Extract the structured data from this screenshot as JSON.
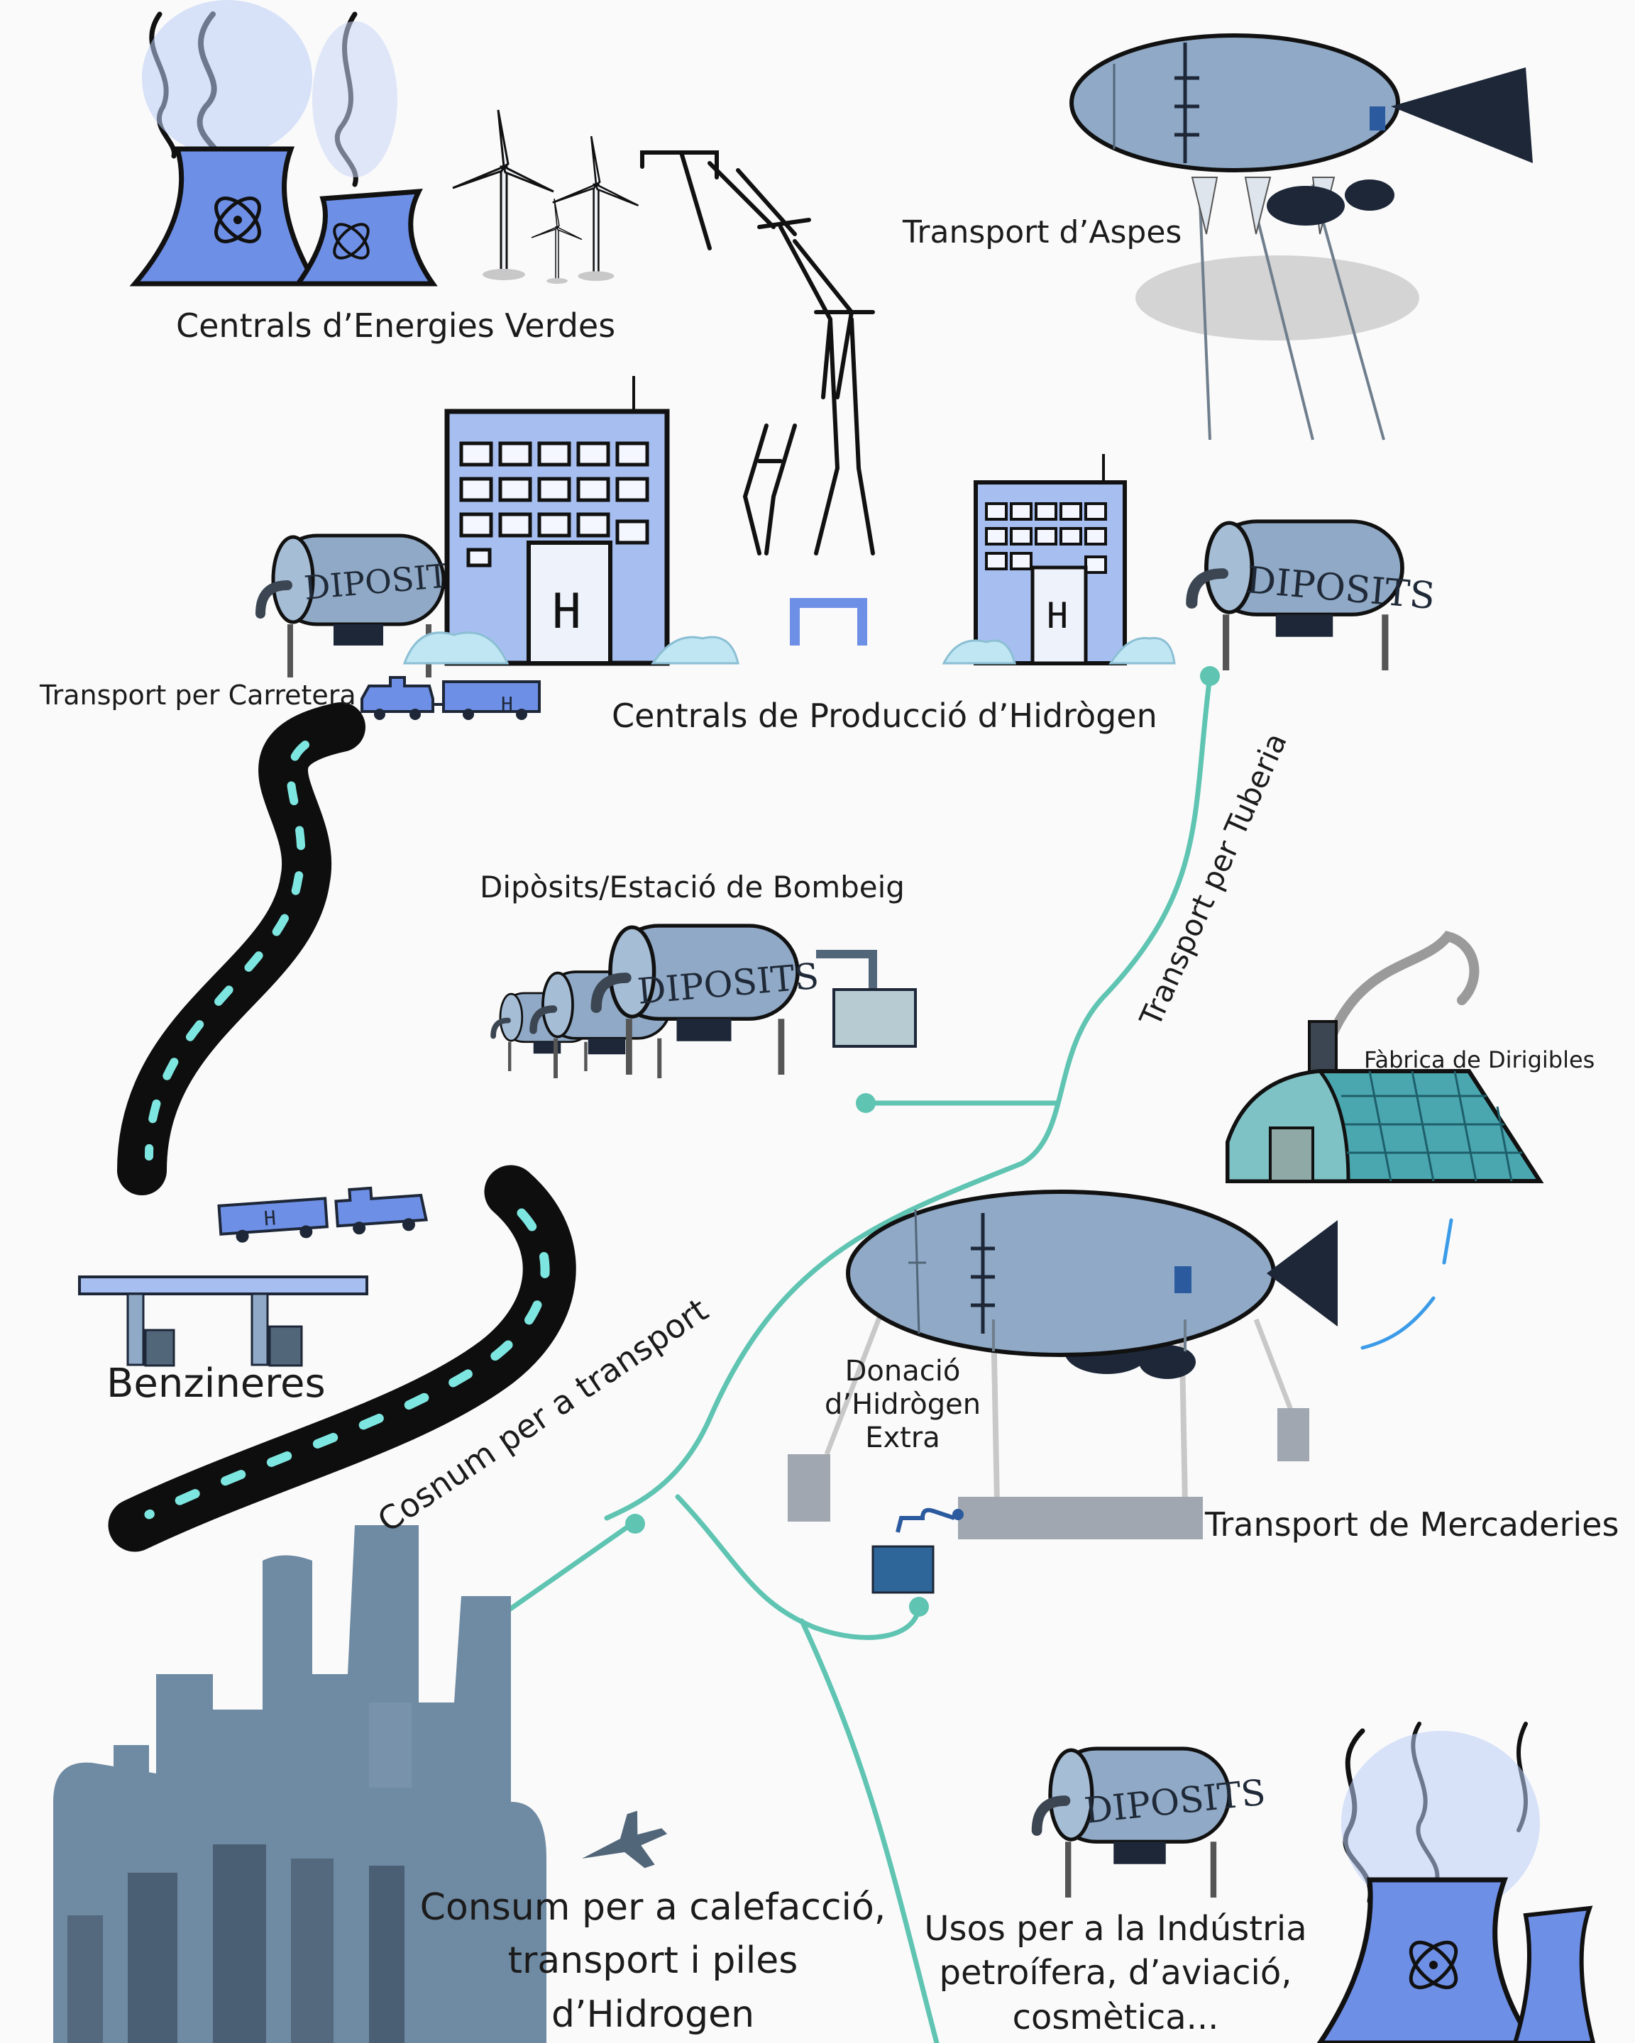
{
  "colors": {
    "background": "#fafafa",
    "light_blue": "#a7bff0",
    "blue": "#6e8fe6",
    "steel": "#8fa9c6",
    "dark_navy": "#1d2738",
    "pipeline_teal": "#5fc4b2",
    "road_black": "#0e0e0e",
    "road_dash": "#7ee6e0",
    "city_slate": "#6f8aa3",
    "factory_teal": "#4aa7b0"
  },
  "labels": {
    "green_energy_plants": "Centrals d’Energies Verdes",
    "airship_transport": "Transport d’Aspes",
    "road_transport": "Transport per Carretera",
    "hydrogen_production": "Centrals de Producció d’Hidrògen",
    "storage_pumping": "Dipòsits/Estació de Bombeig",
    "pipeline_transport": "Transport per Tuberia",
    "airship_factory": "Fàbrica de Dirigibles",
    "gas_stations": "Benzineres",
    "transport_consumption": "Cosnum per a transport",
    "extra_donation_line1": "Donació",
    "extra_donation_line2": "d’Hidrògen",
    "extra_donation_line3": "Extra",
    "freight_transport": "Transport de Mercaderies",
    "heating_line1": "Consum per a calefacció,",
    "heating_line2": "transport i piles",
    "heating_line3": "d’Hidrogen",
    "industry_line1": "Usos per a la Indústria",
    "industry_line2": "petroífera, d’aviació,",
    "industry_line3": "cosmètica..."
  },
  "drawing_text": {
    "tank": "DIPOSITS",
    "hydrogen_symbol": "H"
  },
  "icons": [
    "cooling-tower-icon",
    "wind-turbine-icon",
    "power-pylon-icon",
    "airship-icon",
    "storage-tank-icon",
    "factory-building-icon",
    "truck-icon",
    "road-icon",
    "gas-station-icon",
    "hangar-icon",
    "city-skyline-icon",
    "airplane-icon",
    "pipeline-icon"
  ]
}
